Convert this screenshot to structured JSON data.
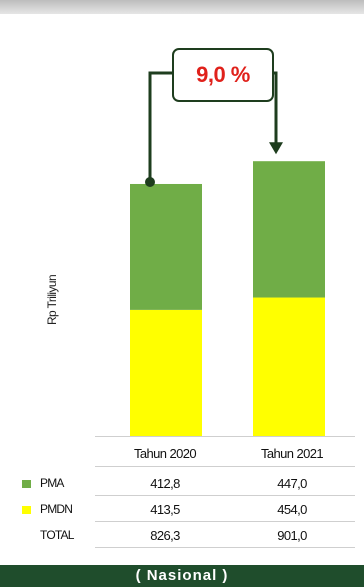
{
  "chart_data": {
    "type": "bar",
    "stacked": true,
    "categories": [
      "Tahun 2020",
      "Tahun 2021"
    ],
    "series": [
      {
        "name": "PMDN",
        "values": [
          413.5,
          454.0
        ],
        "color": "#ffff00"
      },
      {
        "name": "PMA",
        "values": [
          412.8,
          447.0
        ],
        "color": "#70ad47"
      }
    ],
    "ylabel": "Rp Triliyun",
    "growth_label": "9,0 %",
    "ylim": [
      0,
      1000
    ],
    "grid": false,
    "legend": "table-below"
  },
  "table": {
    "columns": [
      "Tahun 2020",
      "Tahun 2021"
    ],
    "rows": [
      {
        "label": "PMA",
        "values": [
          "412,8",
          "447,0"
        ],
        "color": "#70ad47"
      },
      {
        "label": "PMDN",
        "values": [
          "413,5",
          "454,0"
        ],
        "color": "#ffff00"
      },
      {
        "label": "TOTAL",
        "values": [
          "826,3",
          "901,0"
        ]
      }
    ]
  },
  "footer": "( Nasional )",
  "colors": {
    "arrow": "#1e3d1e",
    "growth_text": "#e0211b",
    "footer_bg": "#1f4d2c"
  }
}
